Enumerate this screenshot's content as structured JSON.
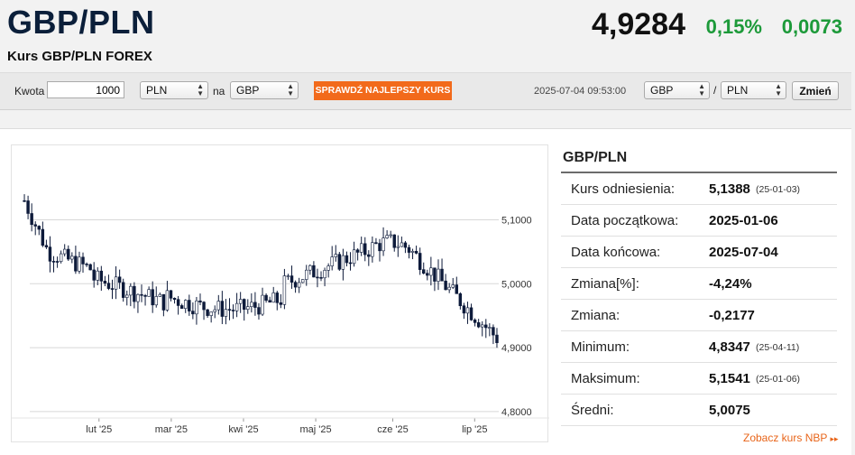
{
  "header": {
    "pair": "GBP/PLN",
    "subtitle": "Kurs GBP/PLN FOREX",
    "rate": "4,9284",
    "change_pct": "0,15%",
    "change_abs": "0,0073",
    "change_color": "#1d9a3a"
  },
  "converter": {
    "amount_label": "Kwota",
    "amount_value": "1000",
    "from_currency": "PLN",
    "to_label": "na",
    "to_currency": "GBP",
    "best_rate_button": "SPRAWDŹ NAJLEPSZY KURS",
    "best_rate_color": "#f26a1b"
  },
  "pair_selector": {
    "timestamp": "2025-07-04 09:53:00",
    "base": "GBP",
    "separator": "/",
    "quote": "PLN",
    "change_button": "Zmień"
  },
  "stats": {
    "title": "GBP/PLN",
    "rows": [
      {
        "label": "Kurs odniesienia:",
        "value": "5,1388",
        "date": "(25-01-03)"
      },
      {
        "label": "Data początkowa:",
        "value": "2025-01-06",
        "date": ""
      },
      {
        "label": "Data końcowa:",
        "value": "2025-07-04",
        "date": ""
      },
      {
        "label": "Zmiana[%]:",
        "value": "-4,24%",
        "date": ""
      },
      {
        "label": "Zmiana:",
        "value": "-0,2177",
        "date": ""
      },
      {
        "label": "Minimum:",
        "value": "4,8347",
        "date": "(25-04-11)"
      },
      {
        "label": "Maksimum:",
        "value": "5,1541",
        "date": "(25-01-06)"
      },
      {
        "label": "Średni:",
        "value": "5,0075",
        "date": ""
      }
    ],
    "nbp_link": "Zobacz kurs NBP"
  },
  "chart_data": {
    "type": "candlestick",
    "x_ticks": [
      "lut '25",
      "mar '25",
      "kwi '25",
      "maj '25",
      "cze '25",
      "lip '25"
    ],
    "y_ticks": [
      "5,1000",
      "5,0000",
      "4,9000",
      "4,8000"
    ],
    "y_tick_values": [
      5.1,
      5.0,
      4.9,
      4.8
    ],
    "ylim": [
      4.79,
      5.16
    ],
    "grid": true,
    "up_color": "#ffffff",
    "down_color": "#0d1a3a",
    "series": [
      {
        "name": "GBP/PLN",
        "ohlc": []
      }
    ]
  }
}
